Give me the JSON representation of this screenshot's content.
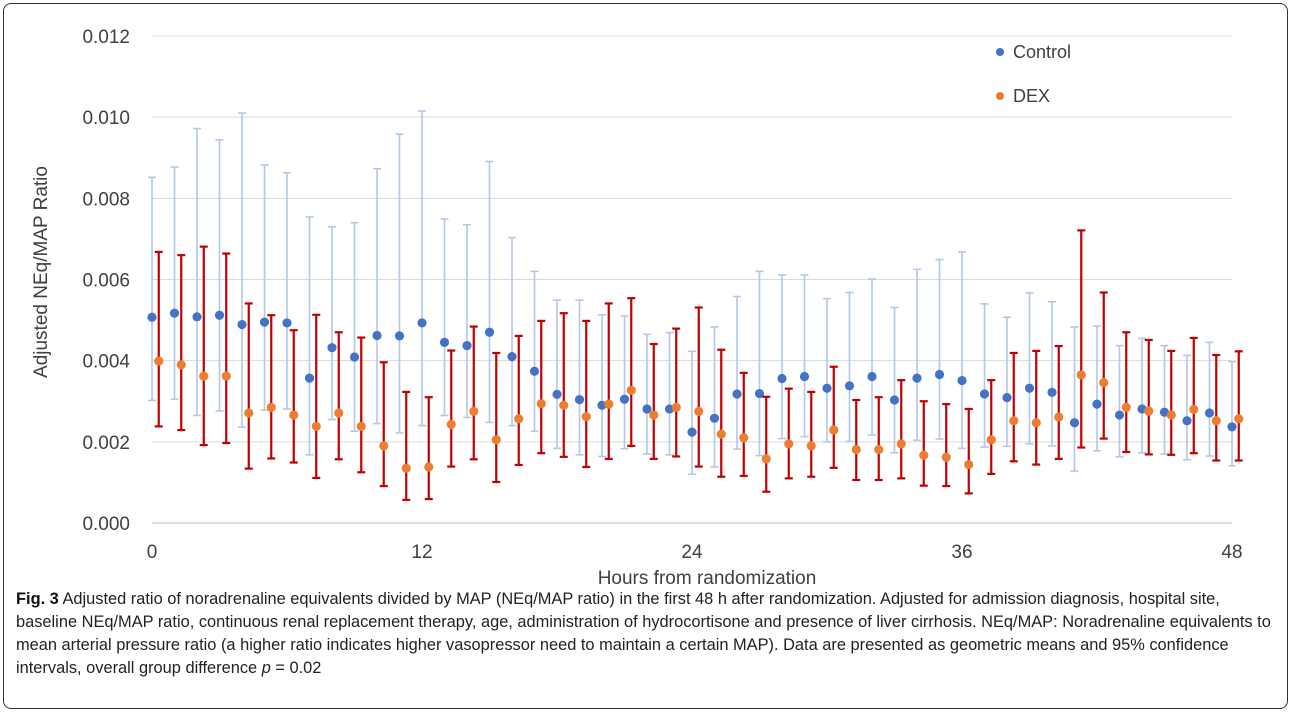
{
  "chart_data": {
    "type": "scatter",
    "title": "",
    "xlabel": "Hours from randomization",
    "ylabel": "Adjusted NEq/MAP Ratio",
    "xlim": [
      0,
      48
    ],
    "ylim": [
      0,
      0.012
    ],
    "x_ticks": [
      "0",
      "12",
      "24",
      "36",
      "48"
    ],
    "y_ticks": [
      "0.000",
      "0.002",
      "0.004",
      "0.006",
      "0.008",
      "0.010",
      "0.012"
    ],
    "grid": "horizontal",
    "legend_position": "top-right",
    "series": [
      {
        "name": "Control",
        "color": "#4472c4",
        "error_color": "#b4c7e7",
        "points": [
          {
            "x": 0,
            "y": 0.00507,
            "lo": 0.00302,
            "hi": 0.00852
          },
          {
            "x": 1,
            "y": 0.00517,
            "lo": 0.00305,
            "hi": 0.00877
          },
          {
            "x": 2,
            "y": 0.00508,
            "lo": 0.00265,
            "hi": 0.00972
          },
          {
            "x": 3,
            "y": 0.00512,
            "lo": 0.00276,
            "hi": 0.00944
          },
          {
            "x": 4,
            "y": 0.00489,
            "lo": 0.00236,
            "hi": 0.0101
          },
          {
            "x": 5,
            "y": 0.00495,
            "lo": 0.00278,
            "hi": 0.00882
          },
          {
            "x": 6,
            "y": 0.00493,
            "lo": 0.00281,
            "hi": 0.00863
          },
          {
            "x": 7,
            "y": 0.00357,
            "lo": 0.00168,
            "hi": 0.00754
          },
          {
            "x": 8,
            "y": 0.00432,
            "lo": 0.00255,
            "hi": 0.0073
          },
          {
            "x": 9,
            "y": 0.00409,
            "lo": 0.00226,
            "hi": 0.0074
          },
          {
            "x": 10,
            "y": 0.00462,
            "lo": 0.00245,
            "hi": 0.00873
          },
          {
            "x": 11,
            "y": 0.00461,
            "lo": 0.00222,
            "hi": 0.00958
          },
          {
            "x": 12,
            "y": 0.00493,
            "lo": 0.0024,
            "hi": 0.01015
          },
          {
            "x": 13,
            "y": 0.00445,
            "lo": 0.00265,
            "hi": 0.00749
          },
          {
            "x": 14,
            "y": 0.00437,
            "lo": 0.0026,
            "hi": 0.00735
          },
          {
            "x": 15,
            "y": 0.0047,
            "lo": 0.00248,
            "hi": 0.00891
          },
          {
            "x": 16,
            "y": 0.0041,
            "lo": 0.0024,
            "hi": 0.00703
          },
          {
            "x": 17,
            "y": 0.00374,
            "lo": 0.00226,
            "hi": 0.0062
          },
          {
            "x": 18,
            "y": 0.00317,
            "lo": 0.00184,
            "hi": 0.00549
          },
          {
            "x": 19,
            "y": 0.00304,
            "lo": 0.00168,
            "hi": 0.00549
          },
          {
            "x": 20,
            "y": 0.0029,
            "lo": 0.00164,
            "hi": 0.00513
          },
          {
            "x": 21,
            "y": 0.00305,
            "lo": 0.00183,
            "hi": 0.0051
          },
          {
            "x": 22,
            "y": 0.00281,
            "lo": 0.0017,
            "hi": 0.00465
          },
          {
            "x": 23,
            "y": 0.00281,
            "lo": 0.00168,
            "hi": 0.00469
          },
          {
            "x": 24,
            "y": 0.00224,
            "lo": 0.0012,
            "hi": 0.00423
          },
          {
            "x": 25,
            "y": 0.00258,
            "lo": 0.00138,
            "hi": 0.00483
          },
          {
            "x": 26,
            "y": 0.00318,
            "lo": 0.00182,
            "hi": 0.00558
          },
          {
            "x": 27,
            "y": 0.00319,
            "lo": 0.00166,
            "hi": 0.0062
          },
          {
            "x": 28,
            "y": 0.00356,
            "lo": 0.00208,
            "hi": 0.00611
          },
          {
            "x": 29,
            "y": 0.00361,
            "lo": 0.00213,
            "hi": 0.00611
          },
          {
            "x": 30,
            "y": 0.00332,
            "lo": 0.002,
            "hi": 0.00553
          },
          {
            "x": 31,
            "y": 0.00338,
            "lo": 0.00201,
            "hi": 0.00568
          },
          {
            "x": 32,
            "y": 0.00361,
            "lo": 0.00217,
            "hi": 0.00601
          },
          {
            "x": 33,
            "y": 0.00303,
            "lo": 0.00173,
            "hi": 0.00531
          },
          {
            "x": 34,
            "y": 0.00357,
            "lo": 0.00204,
            "hi": 0.00625
          },
          {
            "x": 35,
            "y": 0.00366,
            "lo": 0.00207,
            "hi": 0.00649
          },
          {
            "x": 36,
            "y": 0.00351,
            "lo": 0.00184,
            "hi": 0.00668
          },
          {
            "x": 37,
            "y": 0.00318,
            "lo": 0.00187,
            "hi": 0.0054
          },
          {
            "x": 38,
            "y": 0.00309,
            "lo": 0.00189,
            "hi": 0.00507
          },
          {
            "x": 39,
            "y": 0.00332,
            "lo": 0.00195,
            "hi": 0.00567
          },
          {
            "x": 40,
            "y": 0.00322,
            "lo": 0.0019,
            "hi": 0.00545
          },
          {
            "x": 41,
            "y": 0.00247,
            "lo": 0.00128,
            "hi": 0.00483
          },
          {
            "x": 42,
            "y": 0.00293,
            "lo": 0.00178,
            "hi": 0.00485
          },
          {
            "x": 43,
            "y": 0.00266,
            "lo": 0.00163,
            "hi": 0.00437
          },
          {
            "x": 44,
            "y": 0.00281,
            "lo": 0.00173,
            "hi": 0.00455
          },
          {
            "x": 45,
            "y": 0.00273,
            "lo": 0.0017,
            "hi": 0.00437
          },
          {
            "x": 46,
            "y": 0.00252,
            "lo": 0.00156,
            "hi": 0.00413
          },
          {
            "x": 47,
            "y": 0.00271,
            "lo": 0.00165,
            "hi": 0.00445
          },
          {
            "x": 48,
            "y": 0.00237,
            "lo": 0.00141,
            "hi": 0.00398
          }
        ]
      },
      {
        "name": "DEX",
        "color": "#ed7d31",
        "error_color": "#c00000",
        "points": [
          {
            "x": 0.3,
            "y": 0.00399,
            "lo": 0.00238,
            "hi": 0.00668
          },
          {
            "x": 1.3,
            "y": 0.0039,
            "lo": 0.00229,
            "hi": 0.0066
          },
          {
            "x": 2.3,
            "y": 0.00362,
            "lo": 0.00192,
            "hi": 0.00681
          },
          {
            "x": 3.3,
            "y": 0.00362,
            "lo": 0.00197,
            "hi": 0.00664
          },
          {
            "x": 4.3,
            "y": 0.00271,
            "lo": 0.00134,
            "hi": 0.00541
          },
          {
            "x": 5.3,
            "y": 0.00285,
            "lo": 0.00159,
            "hi": 0.00512
          },
          {
            "x": 6.3,
            "y": 0.00266,
            "lo": 0.00149,
            "hi": 0.00475
          },
          {
            "x": 7.3,
            "y": 0.00238,
            "lo": 0.00111,
            "hi": 0.00513
          },
          {
            "x": 8.3,
            "y": 0.00271,
            "lo": 0.00157,
            "hi": 0.0047
          },
          {
            "x": 9.3,
            "y": 0.00238,
            "lo": 0.00125,
            "hi": 0.00457
          },
          {
            "x": 10.3,
            "y": 0.0019,
            "lo": 0.00091,
            "hi": 0.00396
          },
          {
            "x": 11.3,
            "y": 0.00135,
            "lo": 0.00057,
            "hi": 0.00323
          },
          {
            "x": 12.3,
            "y": 0.00138,
            "lo": 0.00059,
            "hi": 0.0031
          },
          {
            "x": 13.3,
            "y": 0.00243,
            "lo": 0.00139,
            "hi": 0.00425
          },
          {
            "x": 14.3,
            "y": 0.00275,
            "lo": 0.00157,
            "hi": 0.00484
          },
          {
            "x": 15.3,
            "y": 0.00205,
            "lo": 0.00101,
            "hi": 0.00419
          },
          {
            "x": 16.3,
            "y": 0.00257,
            "lo": 0.00143,
            "hi": 0.00461
          },
          {
            "x": 17.3,
            "y": 0.00294,
            "lo": 0.00172,
            "hi": 0.00498
          },
          {
            "x": 18.3,
            "y": 0.0029,
            "lo": 0.00163,
            "hi": 0.00517
          },
          {
            "x": 19.3,
            "y": 0.00262,
            "lo": 0.00138,
            "hi": 0.00498
          },
          {
            "x": 20.3,
            "y": 0.00293,
            "lo": 0.00158,
            "hi": 0.00541
          },
          {
            "x": 21.3,
            "y": 0.00327,
            "lo": 0.0019,
            "hi": 0.00554
          },
          {
            "x": 22.3,
            "y": 0.00266,
            "lo": 0.00158,
            "hi": 0.00441
          },
          {
            "x": 23.3,
            "y": 0.00285,
            "lo": 0.00164,
            "hi": 0.00479
          },
          {
            "x": 24.3,
            "y": 0.00275,
            "lo": 0.00139,
            "hi": 0.00531
          },
          {
            "x": 25.3,
            "y": 0.00219,
            "lo": 0.00114,
            "hi": 0.00427
          },
          {
            "x": 26.3,
            "y": 0.0021,
            "lo": 0.00116,
            "hi": 0.0037
          },
          {
            "x": 27.3,
            "y": 0.00158,
            "lo": 0.00077,
            "hi": 0.00311
          },
          {
            "x": 28.3,
            "y": 0.00195,
            "lo": 0.0011,
            "hi": 0.00331
          },
          {
            "x": 29.3,
            "y": 0.0019,
            "lo": 0.00114,
            "hi": 0.00323
          },
          {
            "x": 30.3,
            "y": 0.00229,
            "lo": 0.00136,
            "hi": 0.00385
          },
          {
            "x": 31.3,
            "y": 0.00181,
            "lo": 0.00106,
            "hi": 0.00303
          },
          {
            "x": 32.3,
            "y": 0.00181,
            "lo": 0.00106,
            "hi": 0.0031
          },
          {
            "x": 33.3,
            "y": 0.00195,
            "lo": 0.0011,
            "hi": 0.00352
          },
          {
            "x": 34.3,
            "y": 0.00167,
            "lo": 0.00092,
            "hi": 0.003
          },
          {
            "x": 35.3,
            "y": 0.00162,
            "lo": 0.00091,
            "hi": 0.00293
          },
          {
            "x": 36.3,
            "y": 0.00144,
            "lo": 0.00073,
            "hi": 0.00281
          },
          {
            "x": 37.3,
            "y": 0.00205,
            "lo": 0.00121,
            "hi": 0.00352
          },
          {
            "x": 38.3,
            "y": 0.00252,
            "lo": 0.00152,
            "hi": 0.00419
          },
          {
            "x": 39.3,
            "y": 0.00247,
            "lo": 0.00144,
            "hi": 0.00424
          },
          {
            "x": 40.3,
            "y": 0.00261,
            "lo": 0.00158,
            "hi": 0.00436
          },
          {
            "x": 41.3,
            "y": 0.00365,
            "lo": 0.00186,
            "hi": 0.00721
          },
          {
            "x": 42.3,
            "y": 0.00346,
            "lo": 0.00208,
            "hi": 0.00568
          },
          {
            "x": 43.3,
            "y": 0.00285,
            "lo": 0.00175,
            "hi": 0.0047
          },
          {
            "x": 44.3,
            "y": 0.00276,
            "lo": 0.00169,
            "hi": 0.00451
          },
          {
            "x": 45.3,
            "y": 0.00266,
            "lo": 0.00168,
            "hi": 0.00424
          },
          {
            "x": 46.3,
            "y": 0.0028,
            "lo": 0.00172,
            "hi": 0.00456
          },
          {
            "x": 47.3,
            "y": 0.00252,
            "lo": 0.00154,
            "hi": 0.00414
          },
          {
            "x": 48.3,
            "y": 0.00257,
            "lo": 0.00154,
            "hi": 0.00423
          }
        ]
      }
    ]
  },
  "caption": {
    "label": "Fig. 3",
    "text_main": " Adjusted ratio of noradrenaline equivalents divided by MAP (NEq/MAP ratio) in the first 48 h after randomization. Adjusted for admission diagnosis, hospital site, baseline NEq/MAP ratio, continuous renal replacement therapy, age, administration of hydrocortisone and presence of liver cirrhosis. NEq/MAP: Noradrenaline equivalents to mean arterial pressure ratio (a higher ratio indicates higher vasopressor need to maintain a certain MAP). Data are presented as geometric means and 95% confidence intervals, overall group difference ",
    "p_symbol": "p",
    "p_value": " = 0.02"
  }
}
